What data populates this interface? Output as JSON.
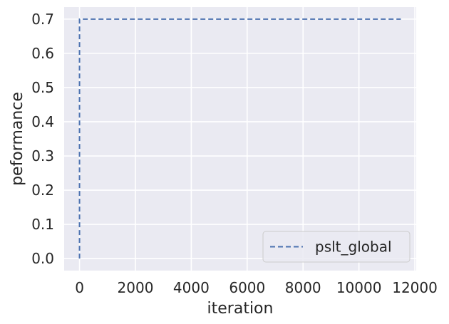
{
  "chart_data": {
    "type": "line",
    "xlabel": "iteration",
    "ylabel": "peformance",
    "xlim": [
      -550,
      12050
    ],
    "ylim": [
      -0.035,
      0.735
    ],
    "x_ticks": [
      0,
      2000,
      4000,
      6000,
      8000,
      10000,
      12000
    ],
    "y_ticks": [
      0.0,
      0.1,
      0.2,
      0.3,
      0.4,
      0.5,
      0.6,
      0.7
    ],
    "grid": true,
    "legend_position": "bottom-right",
    "series": [
      {
        "name": "pslt_global",
        "style": "dashed",
        "color": "#4c72b0",
        "x": [
          0,
          0,
          11500
        ],
        "y": [
          0.0,
          0.7,
          0.7
        ]
      }
    ],
    "colors": {
      "background": "#eaeaf2",
      "grid": "#ffffff",
      "text": "#262626"
    }
  }
}
